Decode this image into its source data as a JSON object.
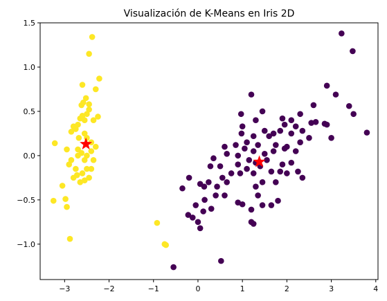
{
  "chart_data": {
    "type": "scatter",
    "title": "Visualización de K-Means en Iris 2D",
    "xlabel": "",
    "ylabel": "",
    "xlim": [
      -3.55,
      4.05
    ],
    "ylim": [
      -1.4,
      1.5
    ],
    "x_ticks": [
      -3,
      -2,
      -1,
      0,
      1,
      2,
      3,
      4
    ],
    "y_ticks": [
      -1.0,
      -0.5,
      0.0,
      0.5,
      1.0,
      1.5
    ],
    "grid": false,
    "legend": false,
    "colors": {
      "cluster_0": "#440154",
      "cluster_1": "#fde725",
      "centroid": "#ff0000"
    },
    "series": [
      {
        "cluster": 0,
        "color": "#440154",
        "points": [
          [
            -0.55,
            -1.26
          ],
          [
            0.52,
            -1.19
          ],
          [
            0.05,
            -0.82
          ],
          [
            0.0,
            -0.75
          ],
          [
            1.2,
            -0.75
          ],
          [
            1.25,
            -0.77
          ],
          [
            -0.22,
            -0.67
          ],
          [
            -0.12,
            -0.7
          ],
          [
            0.12,
            -0.63
          ],
          [
            0.3,
            -0.6
          ],
          [
            1.2,
            -0.61
          ],
          [
            1.45,
            -0.56
          ],
          [
            1.65,
            -0.56
          ],
          [
            -0.05,
            -0.56
          ],
          [
            0.15,
            -0.5
          ],
          [
            0.6,
            -0.45
          ],
          [
            0.9,
            -0.53
          ],
          [
            1.0,
            -0.55
          ],
          [
            1.35,
            -0.45
          ],
          [
            1.8,
            -0.51
          ],
          [
            0.4,
            -0.45
          ],
          [
            -0.35,
            -0.37
          ],
          [
            0.05,
            -0.32
          ],
          [
            0.14,
            -0.35
          ],
          [
            0.24,
            -0.3
          ],
          [
            0.43,
            -0.35
          ],
          [
            0.65,
            -0.3
          ],
          [
            1.3,
            -0.35
          ],
          [
            1.45,
            -0.3
          ],
          [
            1.75,
            -0.3
          ],
          [
            2.35,
            -0.25
          ],
          [
            0.55,
            -0.25
          ],
          [
            0.75,
            -0.2
          ],
          [
            0.95,
            -0.2
          ],
          [
            1.1,
            -0.15
          ],
          [
            1.25,
            -0.2
          ],
          [
            1.4,
            -0.12
          ],
          [
            1.65,
            -0.18
          ],
          [
            1.85,
            -0.18
          ],
          [
            2.0,
            -0.2
          ],
          [
            2.25,
            -0.18
          ],
          [
            -0.2,
            -0.25
          ],
          [
            0.28,
            -0.12
          ],
          [
            0.5,
            -0.12
          ],
          [
            0.9,
            -0.1
          ],
          [
            1.15,
            -0.05
          ],
          [
            1.3,
            -0.08
          ],
          [
            1.55,
            -0.05
          ],
          [
            1.9,
            -0.1
          ],
          [
            2.1,
            -0.08
          ],
          [
            0.35,
            -0.03
          ],
          [
            0.65,
            0.02
          ],
          [
            0.9,
            0.0
          ],
          [
            1.05,
            0.08
          ],
          [
            1.25,
            0.05
          ],
          [
            1.5,
            0.02
          ],
          [
            1.7,
            0.05
          ],
          [
            1.95,
            0.08
          ],
          [
            2.2,
            0.05
          ],
          [
            0.6,
            0.1
          ],
          [
            0.85,
            0.12
          ],
          [
            1.1,
            0.15
          ],
          [
            1.35,
            0.12
          ],
          [
            1.75,
            0.12
          ],
          [
            2.0,
            0.1
          ],
          [
            2.3,
            0.15
          ],
          [
            2.5,
            0.2
          ],
          [
            3.0,
            0.2
          ],
          [
            0.98,
            0.25
          ],
          [
            1.25,
            0.22
          ],
          [
            1.6,
            0.22
          ],
          [
            1.85,
            0.28
          ],
          [
            2.1,
            0.25
          ],
          [
            2.35,
            0.28
          ],
          [
            1.0,
            0.33
          ],
          [
            1.5,
            0.28
          ],
          [
            1.7,
            0.25
          ],
          [
            1.95,
            0.35
          ],
          [
            2.2,
            0.33
          ],
          [
            2.55,
            0.37
          ],
          [
            0.97,
            0.47
          ],
          [
            1.3,
            0.4
          ],
          [
            1.9,
            0.42
          ],
          [
            2.3,
            0.47
          ],
          [
            2.65,
            0.38
          ],
          [
            2.85,
            0.36
          ],
          [
            2.9,
            0.35
          ],
          [
            1.45,
            0.5
          ],
          [
            1.2,
            0.69
          ],
          [
            2.1,
            0.4
          ],
          [
            2.6,
            0.57
          ],
          [
            2.9,
            0.79
          ],
          [
            3.1,
            0.69
          ],
          [
            3.5,
            0.47
          ],
          [
            3.4,
            0.56
          ],
          [
            3.8,
            0.26
          ],
          [
            3.23,
            1.38
          ],
          [
            3.48,
            1.18
          ]
        ]
      },
      {
        "cluster": 1,
        "color": "#fde725",
        "points": [
          [
            -3.22,
            0.14
          ],
          [
            -3.25,
            -0.51
          ],
          [
            -3.05,
            -0.34
          ],
          [
            -2.98,
            -0.49
          ],
          [
            -2.95,
            -0.58
          ],
          [
            -2.88,
            -0.94
          ],
          [
            -2.95,
            0.07
          ],
          [
            -2.85,
            -0.05
          ],
          [
            -2.8,
            -0.25
          ],
          [
            -2.75,
            -0.15
          ],
          [
            -2.7,
            0.07
          ],
          [
            -2.65,
            -0.3
          ],
          [
            -2.6,
            -0.2
          ],
          [
            -2.55,
            -0.05
          ],
          [
            -2.5,
            -0.15
          ],
          [
            -2.45,
            -0.25
          ],
          [
            -2.4,
            -0.15
          ],
          [
            -2.35,
            -0.05
          ],
          [
            -2.3,
            0.1
          ],
          [
            -2.9,
            -0.1
          ],
          [
            -2.85,
            0.27
          ],
          [
            -2.8,
            0.33
          ],
          [
            -2.75,
            0.3
          ],
          [
            -2.7,
            0.35
          ],
          [
            -2.68,
            0.2
          ],
          [
            -2.65,
            0.42
          ],
          [
            -2.6,
            0.45
          ],
          [
            -2.55,
            0.4
          ],
          [
            -2.5,
            0.47
          ],
          [
            -2.45,
            0.52
          ],
          [
            -2.35,
            0.4
          ],
          [
            -2.25,
            0.44
          ],
          [
            -2.62,
            0.57
          ],
          [
            -2.58,
            0.6
          ],
          [
            -2.52,
            0.65
          ],
          [
            -2.45,
            0.58
          ],
          [
            -2.6,
            0.8
          ],
          [
            -2.3,
            0.75
          ],
          [
            -2.22,
            0.87
          ],
          [
            -2.45,
            1.15
          ],
          [
            -2.38,
            1.34
          ],
          [
            -2.55,
            0.25
          ],
          [
            -2.5,
            0.2
          ],
          [
            -2.4,
            0.15
          ],
          [
            -2.7,
            0.0
          ],
          [
            -2.62,
            0.03
          ],
          [
            -2.72,
            -0.22
          ],
          [
            -2.55,
            -0.28
          ],
          [
            -2.5,
            0.0
          ],
          [
            -2.4,
            0.05
          ],
          [
            -0.92,
            -0.76
          ],
          [
            -0.75,
            -1.0
          ],
          [
            -0.72,
            -1.01
          ]
        ]
      }
    ],
    "centroids": [
      [
        -2.52,
        0.13
      ],
      [
        1.38,
        -0.07
      ]
    ]
  }
}
